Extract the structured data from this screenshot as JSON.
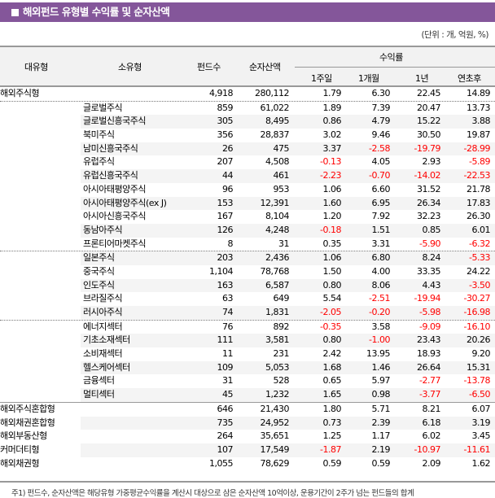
{
  "title": "해외펀드 유형별 수익률 및 순자산액",
  "unit": "(단위 : 개, 억원, %)",
  "headers": {
    "major": "대유형",
    "minor": "소유형",
    "funds": "펀드수",
    "assets": "순자산액",
    "returns": "수익률",
    "w1": "1주일",
    "m1": "1개월",
    "y1": "1년",
    "ytd": "연초후"
  },
  "rows": [
    [
      "해외주식형",
      "",
      "4,918",
      "280,112",
      "1.79",
      "6.30",
      "22.45",
      "14.89"
    ],
    [
      "",
      "글로벌주식",
      "859",
      "61,022",
      "1.89",
      "7.39",
      "20.47",
      "13.73"
    ],
    [
      "",
      "글로벌신흥국주식",
      "305",
      "8,495",
      "0.86",
      "4.79",
      "15.22",
      "3.88"
    ],
    [
      "",
      "북미주식",
      "356",
      "28,837",
      "3.02",
      "9.46",
      "30.50",
      "19.87"
    ],
    [
      "",
      "남미신흥국주식",
      "26",
      "475",
      "3.37",
      "-2.58",
      "-19.79",
      "-28.99"
    ],
    [
      "",
      "유럽주식",
      "207",
      "4,508",
      "-0.13",
      "4.05",
      "2.93",
      "-5.89"
    ],
    [
      "",
      "유럽신흥국주식",
      "44",
      "461",
      "-2.23",
      "-0.70",
      "-14.02",
      "-22.53"
    ],
    [
      "",
      "아시아태평양주식",
      "96",
      "953",
      "1.06",
      "6.60",
      "31.52",
      "21.78"
    ],
    [
      "",
      "아시아태평양주식(ex J)",
      "153",
      "12,391",
      "1.60",
      "6.95",
      "26.34",
      "17.83"
    ],
    [
      "",
      "아시아신흥국주식",
      "167",
      "8,104",
      "1.20",
      "7.92",
      "32.23",
      "26.30"
    ],
    [
      "",
      "동남아주식",
      "126",
      "4,248",
      "-0.18",
      "1.51",
      "0.85",
      "6.01"
    ],
    [
      "",
      "프론티어마켓주식",
      "8",
      "31",
      "0.35",
      "3.31",
      "-5.90",
      "-6.32"
    ],
    [
      "",
      "일본주식",
      "203",
      "2,436",
      "1.06",
      "6.80",
      "8.24",
      "-5.33"
    ],
    [
      "",
      "중국주식",
      "1,104",
      "78,768",
      "1.50",
      "4.00",
      "33.35",
      "24.22"
    ],
    [
      "",
      "인도주식",
      "163",
      "6,587",
      "0.80",
      "8.06",
      "4.43",
      "-3.50"
    ],
    [
      "",
      "브라질주식",
      "63",
      "649",
      "5.54",
      "-2.51",
      "-19.94",
      "-30.27"
    ],
    [
      "",
      "러시아주식",
      "74",
      "1,831",
      "-2.05",
      "-0.20",
      "-5.98",
      "-16.98"
    ],
    [
      "",
      "에너지섹터",
      "76",
      "892",
      "-0.35",
      "3.58",
      "-9.09",
      "-16.10"
    ],
    [
      "",
      "기초소재섹터",
      "111",
      "3,581",
      "0.80",
      "-1.00",
      "23.43",
      "20.26"
    ],
    [
      "",
      "소비재섹터",
      "11",
      "231",
      "2.42",
      "13.95",
      "18.93",
      "9.20"
    ],
    [
      "",
      "헬스케어섹터",
      "109",
      "5,053",
      "1.68",
      "1.46",
      "26.64",
      "15.31"
    ],
    [
      "",
      "금융섹터",
      "31",
      "528",
      "0.65",
      "5.97",
      "-2.77",
      "-13.78"
    ],
    [
      "",
      "멀티섹터",
      "45",
      "1,232",
      "1.65",
      "0.98",
      "-3.77",
      "-6.50"
    ],
    [
      "해외주식혼합형",
      "",
      "646",
      "21,430",
      "1.80",
      "5.71",
      "8.21",
      "6.07"
    ],
    [
      "해외채권혼합형",
      "",
      "735",
      "24,952",
      "0.73",
      "2.39",
      "6.18",
      "3.19"
    ],
    [
      "해외부동산형",
      "",
      "264",
      "35,651",
      "1.25",
      "1.17",
      "6.02",
      "3.45"
    ],
    [
      "커머더티형",
      "",
      "107",
      "17,549",
      "-1.87",
      "2.19",
      "-10.97",
      "-11.61"
    ],
    [
      "해외채권형",
      "",
      "1,055",
      "78,629",
      "0.59",
      "0.59",
      "2.09",
      "1.62"
    ]
  ],
  "footnote": "주1) 펀드수, 순자산액은 해당유형 가중평균수익률을 계산시 대상으로 삼은 순자산액 10억이상, 운용기간이 2주가 넘는 펀드들의 합계",
  "colors": {
    "title_bar": "#84569a",
    "negative": "#ff0000",
    "header_bg": "#f2f2f2"
  }
}
